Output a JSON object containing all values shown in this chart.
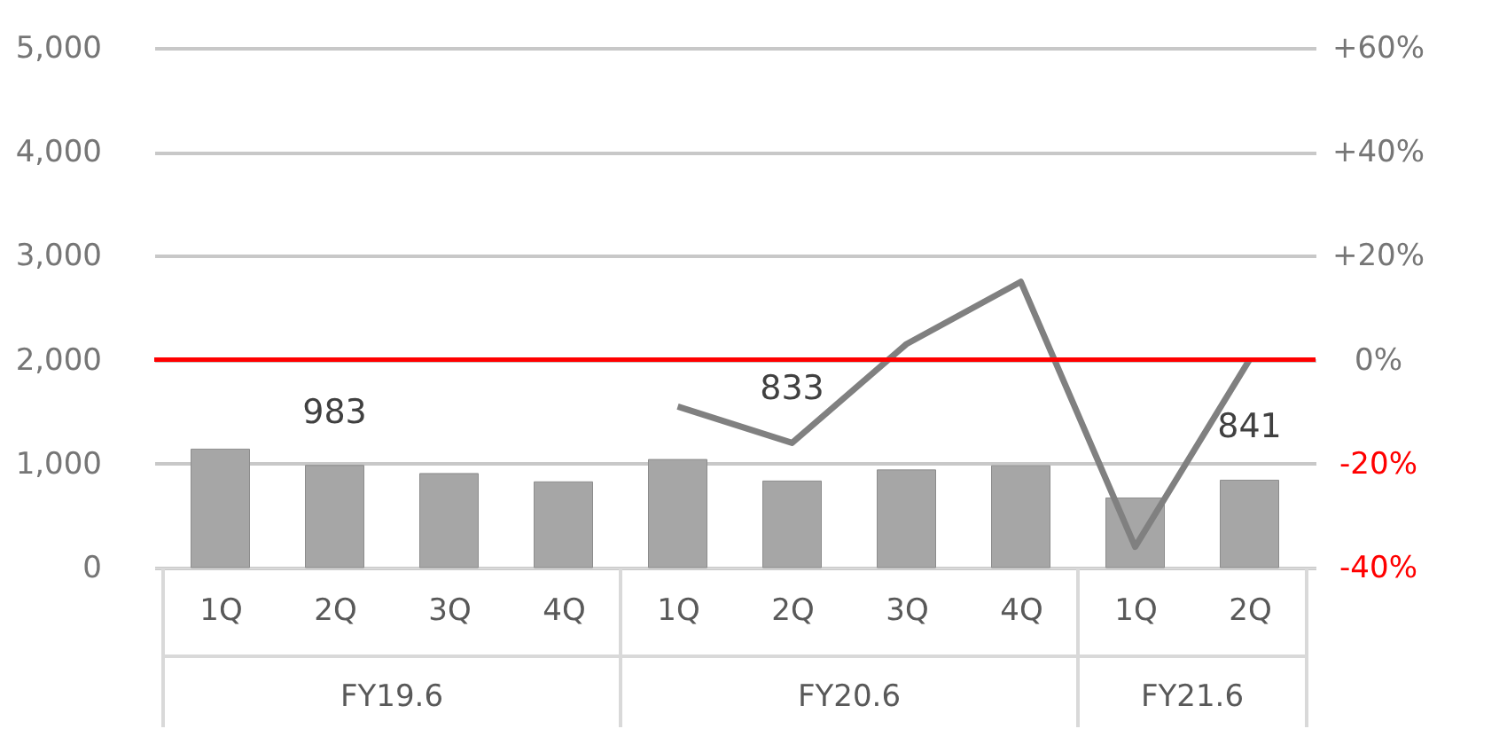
{
  "chart_data": {
    "type": "bar",
    "categories": [
      "1Q",
      "2Q",
      "3Q",
      "4Q",
      "1Q",
      "2Q",
      "3Q",
      "4Q",
      "1Q",
      "2Q"
    ],
    "series": [
      {
        "color": "#a6a6a6",
        "values": [
          1140,
          983,
          905,
          825,
          1040,
          833,
          940,
          980,
          670,
          841
        ],
        "value_labels": [
          null,
          "983",
          null,
          null,
          null,
          "833",
          null,
          null,
          null,
          "841"
        ]
      },
      {
        "type": "line",
        "color": "#808080",
        "axis": "y2",
        "values": [
          null,
          null,
          null,
          null,
          -9,
          -16,
          3,
          15,
          -36,
          0
        ]
      }
    ],
    "ylim": [
      0,
      5000
    ],
    "yticks": [
      {
        "value": 0,
        "label": "0"
      },
      {
        "value": 1000,
        "label": "1,000"
      },
      {
        "value": 2000,
        "label": "2,000"
      },
      {
        "value": 3000,
        "label": "3,000"
      },
      {
        "value": 4000,
        "label": "4,000"
      },
      {
        "value": 5000,
        "label": "5,000"
      }
    ],
    "y2lim": [
      -40,
      60
    ],
    "y2ticks": [
      {
        "value": -40,
        "label": "-40%"
      },
      {
        "value": -20,
        "label": "-20%"
      },
      {
        "value": 0,
        "label": "0%"
      },
      {
        "value": 20,
        "label": "+20%"
      },
      {
        "value": 40,
        "label": "+40%"
      },
      {
        "value": 60,
        "label": "+60%"
      }
    ],
    "ref_lines": [
      {
        "axis": "y2",
        "value": 0,
        "color": "#ff0000"
      }
    ],
    "annotations": [
      "FY19.6",
      "FY20.6",
      "FY21.6"
    ],
    "grid": "y",
    "marker": "none"
  }
}
